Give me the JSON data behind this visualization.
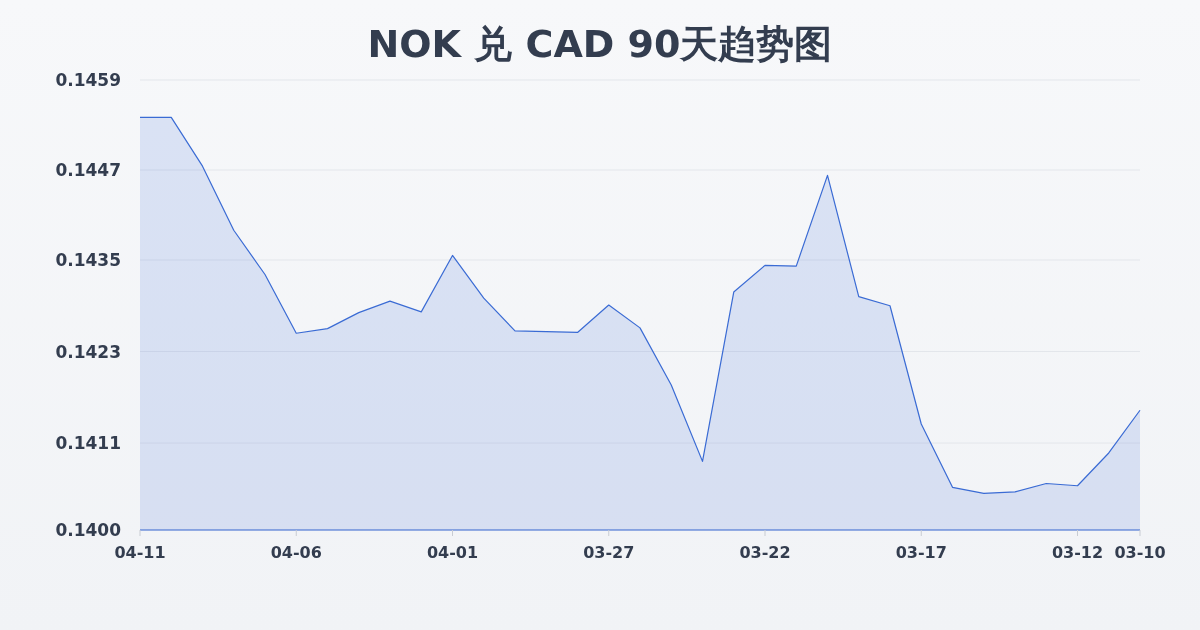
{
  "chart_data": {
    "type": "area",
    "title": "NOK 兑 CAD 90天趋势图",
    "categories": [
      "04-11",
      null,
      null,
      null,
      null,
      "04-06",
      null,
      null,
      null,
      null,
      "04-01",
      null,
      null,
      null,
      null,
      "03-27",
      null,
      null,
      null,
      null,
      "03-22",
      null,
      null,
      null,
      null,
      "03-17",
      null,
      null,
      null,
      null,
      "03-12",
      null,
      "03-10"
    ],
    "values": [
      0.14541,
      0.14541,
      0.14477,
      0.14393,
      0.14335,
      0.14258,
      0.14264,
      0.14285,
      0.143,
      0.14286,
      0.1436,
      0.14304,
      0.14261,
      0.1426,
      0.14259,
      0.14295,
      0.14265,
      0.1419,
      0.1409,
      0.14312,
      0.14347,
      0.14346,
      0.14465,
      0.14306,
      0.14294,
      0.14139,
      0.14056,
      0.14048,
      0.1405,
      0.14061,
      0.14058,
      0.14101,
      0.14157
    ],
    "color": "#3a6bd4",
    "ylim": [
      0.14,
      0.1459
    ],
    "yticks": [
      {
        "value": 0.14,
        "label": "0.1400"
      },
      {
        "value": 0.14114,
        "label": "0.1411"
      },
      {
        "value": 0.14234,
        "label": "0.1423"
      },
      {
        "value": 0.14354,
        "label": "0.1435"
      },
      {
        "value": 0.14472,
        "label": "0.1447"
      },
      {
        "value": 0.1459,
        "label": "0.1459"
      }
    ],
    "grid": "y"
  }
}
